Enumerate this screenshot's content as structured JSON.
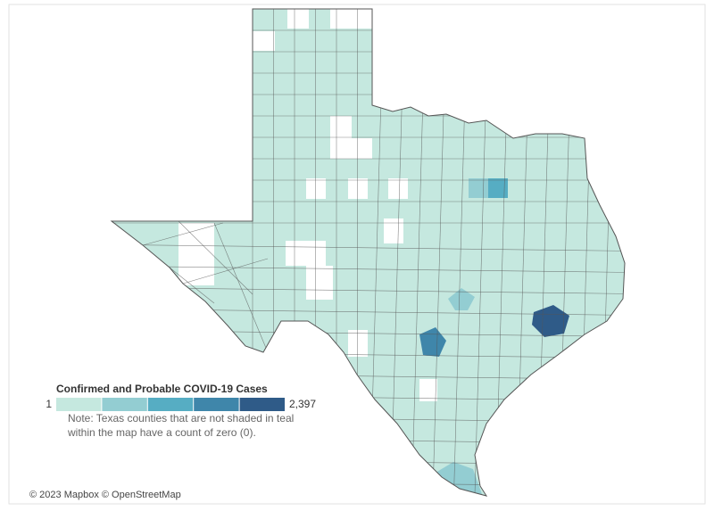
{
  "legend": {
    "title": "Confirmed and Probable COVID-19 Cases",
    "min": 1,
    "max": {
      "value": 2397,
      "label": "2,397"
    },
    "colors": [
      "#c5e8df",
      "#93cdd2",
      "#56adc3",
      "#3f86aa",
      "#2f5b88"
    ]
  },
  "note": [
    "Note: Texas counties that are not shaded in teal",
    "within the map have a count of zero (0)."
  ],
  "attribution": "© 2023 Mapbox © OpenStreetMap"
}
